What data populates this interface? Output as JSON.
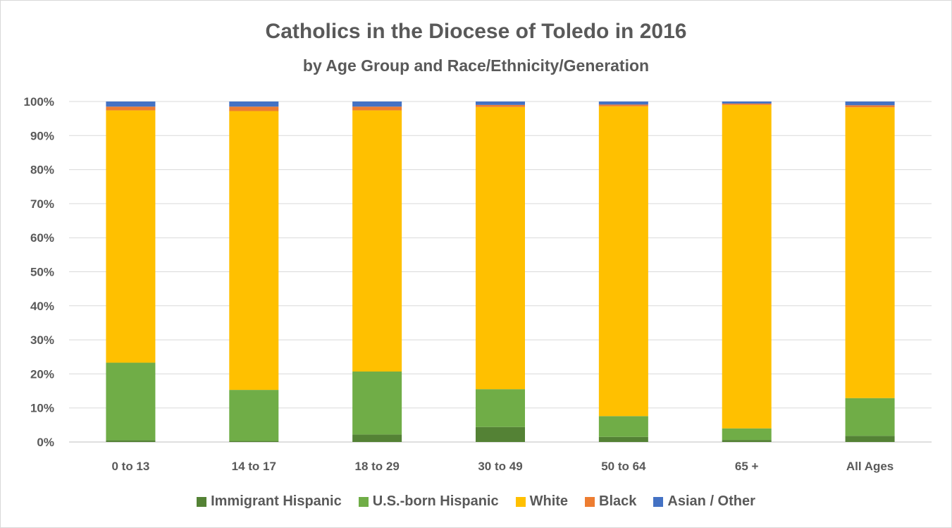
{
  "chart_data": {
    "type": "bar",
    "stacked": true,
    "percent": true,
    "title": "Catholics in the Diocese of Toledo in 2016",
    "subtitle": "by Age Group and Race/Ethnicity/Generation",
    "categories": [
      "0 to 13",
      "14 to 17",
      "18 to 29",
      "30 to 49",
      "50 to 64",
      "65 +",
      "All Ages"
    ],
    "ylim": [
      0,
      100
    ],
    "yticks": [
      "0%",
      "10%",
      "20%",
      "30%",
      "40%",
      "50%",
      "60%",
      "70%",
      "80%",
      "90%",
      "100%"
    ],
    "grid": true,
    "legend_position": "bottom",
    "series": [
      {
        "name": "Immigrant Hispanic",
        "color": "#548235",
        "values": [
          0.5,
          0.3,
          2.2,
          4.4,
          1.5,
          0.6,
          1.8
        ]
      },
      {
        "name": "U.S.-born Hispanic",
        "color": "#70ad47",
        "values": [
          22.8,
          15.0,
          18.5,
          11.1,
          6.1,
          3.4,
          11.1
        ]
      },
      {
        "name": "White",
        "color": "#ffc000",
        "values": [
          74.1,
          81.9,
          76.7,
          82.9,
          91.0,
          95.0,
          85.4
        ]
      },
      {
        "name": "Black",
        "color": "#ed7d31",
        "values": [
          1.1,
          1.3,
          1.1,
          0.6,
          0.5,
          0.4,
          0.6
        ]
      },
      {
        "name": "Asian / Other",
        "color": "#4472c4",
        "values": [
          1.5,
          1.5,
          1.5,
          1.0,
          0.9,
          0.6,
          1.1
        ]
      }
    ]
  }
}
